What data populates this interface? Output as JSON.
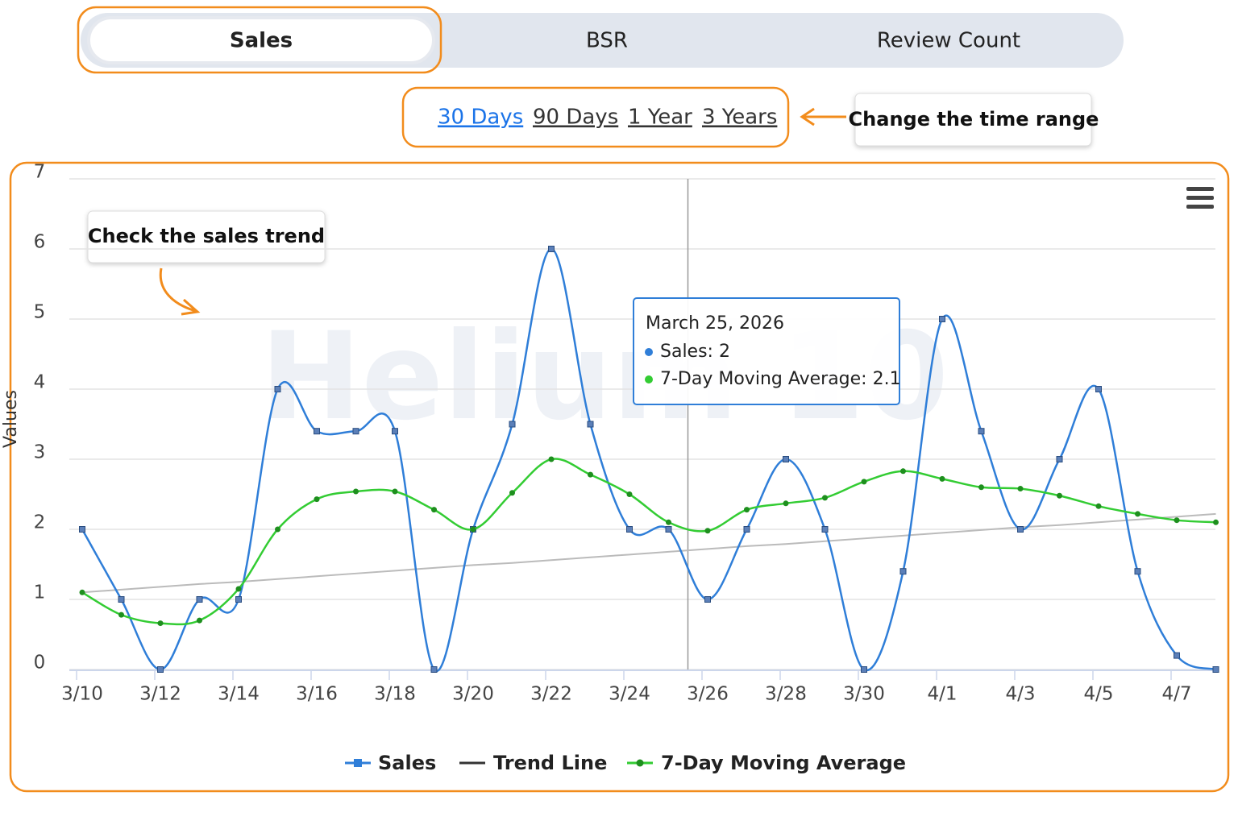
{
  "tabs": {
    "items": [
      "Sales",
      "BSR",
      "Review Count"
    ],
    "active": 0
  },
  "time_ranges": {
    "items": [
      "30 Days",
      "90 Days",
      "1 Year",
      "3 Years"
    ],
    "active": 0
  },
  "annotations": {
    "time_range": "Change the time range",
    "sales_trend": "Check the sales trend"
  },
  "watermark": "Helium 10",
  "tooltip": {
    "title": "March 25, 2026",
    "lines": [
      "Sales: 2",
      "7-Day Moving Average: 2.1"
    ],
    "index": 15
  },
  "chart_data": {
    "type": "line",
    "y_label": "Values",
    "categories": [
      "3/10",
      null,
      "3/12",
      null,
      "3/14",
      null,
      "3/16",
      null,
      "3/18",
      null,
      "3/20",
      null,
      "3/22",
      null,
      "3/24",
      null,
      "3/26",
      null,
      "3/28",
      null,
      "3/30",
      null,
      "4/1",
      null,
      "4/3",
      null,
      "4/5",
      null,
      "4/7",
      null
    ],
    "ylim": [
      0,
      7
    ],
    "yticks": [
      0,
      1,
      2,
      3,
      4,
      5,
      6,
      7
    ],
    "grid": true,
    "series": [
      {
        "name": "Sales",
        "color": "#2f7ed8",
        "marker": "square",
        "values": [
          2,
          1,
          0,
          1,
          1,
          4,
          3.4,
          3.4,
          3.4,
          0,
          2,
          3.5,
          6,
          3.5,
          2,
          2,
          1,
          2,
          3,
          2,
          0,
          1.4,
          5,
          3.4,
          2,
          3,
          4,
          1.4,
          0.2,
          0
        ]
      },
      {
        "name": "Trend Line",
        "color": "#bbbbbb",
        "legend_color": "#333333",
        "marker": "none",
        "values": [
          1.1,
          1.14,
          1.18,
          1.22,
          1.25,
          1.29,
          1.33,
          1.37,
          1.41,
          1.45,
          1.49,
          1.52,
          1.56,
          1.6,
          1.64,
          1.68,
          1.72,
          1.76,
          1.79,
          1.83,
          1.87,
          1.91,
          1.95,
          1.99,
          2.03,
          2.06,
          2.1,
          2.14,
          2.18,
          2.22
        ]
      },
      {
        "name": "7-Day Moving Average",
        "color": "#33cc33",
        "marker": "circle",
        "values": [
          1.1,
          0.78,
          0.66,
          0.7,
          1.15,
          2.0,
          2.43,
          2.54,
          2.54,
          2.28,
          2.0,
          2.52,
          3.0,
          2.78,
          2.5,
          2.1,
          1.98,
          2.28,
          2.37,
          2.45,
          2.68,
          2.83,
          2.72,
          2.6,
          2.58,
          2.48,
          2.33,
          2.22,
          2.13,
          2.1
        ]
      }
    ]
  }
}
